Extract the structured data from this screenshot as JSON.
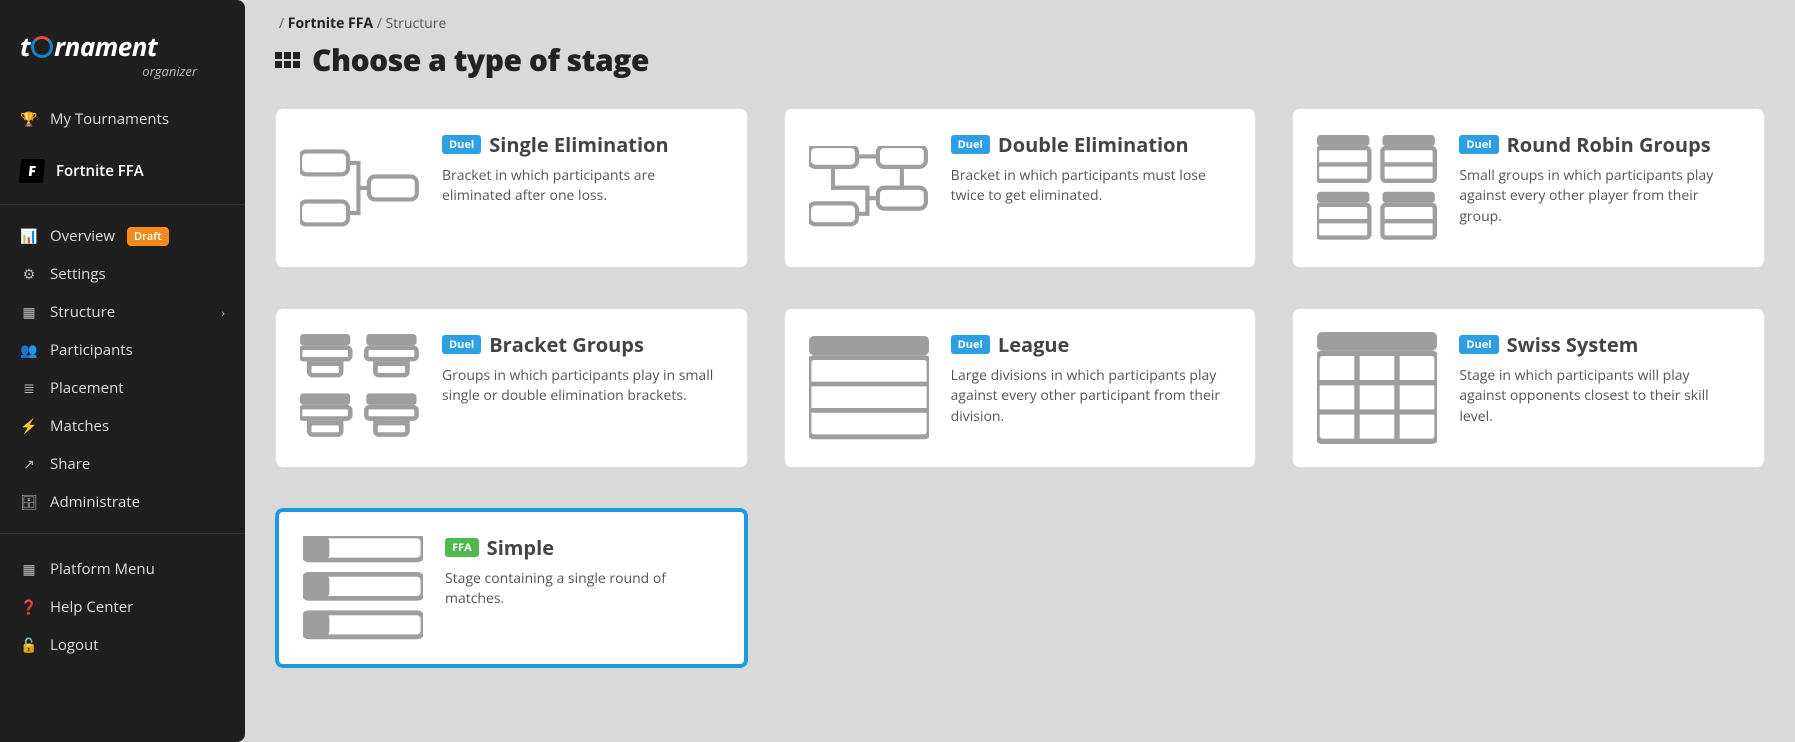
{
  "brand": {
    "name_part_1": "t",
    "name_part_2": "rnament",
    "sub": "organizer"
  },
  "sidebar": {
    "my_tournaments": "My Tournaments",
    "tournament_name": "Fortnite FFA",
    "items": [
      {
        "icon": "gauge",
        "label": "Overview",
        "badge": "Draft"
      },
      {
        "icon": "cogs",
        "label": "Settings"
      },
      {
        "icon": "struct",
        "label": "Structure",
        "chev": true
      },
      {
        "icon": "users",
        "label": "Participants"
      },
      {
        "icon": "list",
        "label": "Placement"
      },
      {
        "icon": "bolt",
        "label": "Matches"
      },
      {
        "icon": "share",
        "label": "Share"
      },
      {
        "icon": "db",
        "label": "Administrate"
      }
    ],
    "footer": [
      {
        "icon": "grid",
        "label": "Platform Menu"
      },
      {
        "icon": "help",
        "label": "Help Center"
      },
      {
        "icon": "lock",
        "label": "Logout"
      }
    ]
  },
  "breadcrumb": {
    "sep": "/",
    "strong": "Fortnite FFA",
    "tail": "Structure"
  },
  "page_title": "Choose a type of stage",
  "tag_labels": {
    "duel": "Duel",
    "ffa": "FFA"
  },
  "stage_types": [
    {
      "id": "single_elim",
      "tag": "duel",
      "title": "Single Elimination",
      "desc": "Bracket in which participants are eliminated after one loss.",
      "illus": "single_elim",
      "selected": false
    },
    {
      "id": "double_elim",
      "tag": "duel",
      "title": "Double Elimination",
      "desc": "Bracket in which participants must lose twice to get eliminated.",
      "illus": "double_elim",
      "selected": false
    },
    {
      "id": "rr_groups",
      "tag": "duel",
      "title": "Round Robin Groups",
      "desc": "Small groups in which participants play against every other player from their group.",
      "illus": "rr_groups",
      "selected": false
    },
    {
      "id": "bracket_groups",
      "tag": "duel",
      "title": "Bracket Groups",
      "desc": "Groups in which participants play in small single or double elimination brackets.",
      "illus": "bracket_groups",
      "selected": false
    },
    {
      "id": "league",
      "tag": "duel",
      "title": "League",
      "desc": "Large divisions in which participants play against every other participant from their division.",
      "illus": "league",
      "selected": false
    },
    {
      "id": "swiss",
      "tag": "duel",
      "title": "Swiss System",
      "desc": "Stage in which participants will play against opponents closest to their skill level.",
      "illus": "swiss",
      "selected": false
    },
    {
      "id": "simple",
      "tag": "ffa",
      "title": "Simple",
      "desc": "Stage containing a single round of matches.",
      "illus": "simple",
      "selected": true
    }
  ],
  "colors": {
    "sidebar_bg": "#1f1f1f",
    "page_bg": "#d9d9d9",
    "card_bg": "#ffffff",
    "card_border": "#dddddd",
    "selected_border": "#1e9ae0",
    "illus_gray": "#9e9e9e",
    "tag_duel": "#2d9fe3",
    "tag_ffa": "#4fb84f",
    "draft_badge": "#f18a1f"
  }
}
